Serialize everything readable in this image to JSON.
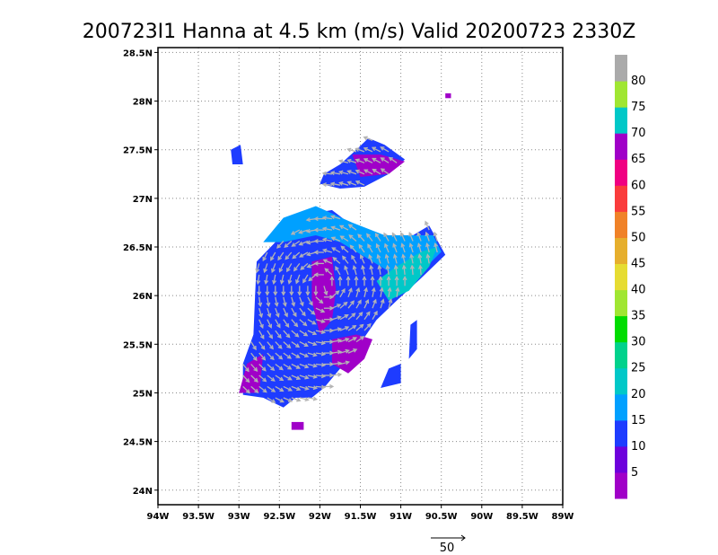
{
  "chart_data": {
    "type": "heatmap",
    "title": "200723I1 Hanna at 4.5 km (m/s) Valid 20200723 2330Z",
    "x_range": [
      -94,
      -89
    ],
    "y_range": [
      23.85,
      28.55
    ],
    "x_ticks": [
      -94,
      -93.5,
      -93,
      -92.5,
      -92,
      -91.5,
      -91,
      -90.5,
      -90,
      -89.5,
      -89
    ],
    "x_tick_labels": [
      "94W",
      "93.5W",
      "93W",
      "92.5W",
      "92W",
      "91.5W",
      "91W",
      "90.5W",
      "90W",
      "89.5W",
      "89W"
    ],
    "y_ticks": [
      24,
      24.5,
      25,
      25.5,
      26,
      26.5,
      27,
      27.5,
      28,
      28.5
    ],
    "y_tick_labels": [
      "24N",
      "24.5N",
      "25N",
      "25.5N",
      "26N",
      "26.5N",
      "27N",
      "27.5N",
      "28N",
      "28.5N"
    ],
    "grid": true,
    "colorbar": {
      "labels": [
        "5",
        "10",
        "15",
        "20",
        "25",
        "30",
        "35",
        "40",
        "45",
        "50",
        "55",
        "60",
        "65",
        "70",
        "75",
        "80"
      ],
      "colors": [
        "#a000c8",
        "#6e00dc",
        "#1e3cff",
        "#00a0ff",
        "#00c8c8",
        "#00d28c",
        "#00dc00",
        "#a0e632",
        "#e6dc32",
        "#e6af2d",
        "#f08228",
        "#fa3c3c",
        "#f00082",
        "#a000c8",
        "#00c8c8",
        "#a0e632",
        "#aaaaaa"
      ]
    },
    "wind_reference": {
      "label": "50",
      "speed": 50
    },
    "wind_regions": [
      {
        "name": "main",
        "polygon": [
          [
            -92.78,
            26.35
          ],
          [
            -92.55,
            26.55
          ],
          [
            -92.3,
            26.7
          ],
          [
            -92.05,
            26.85
          ],
          [
            -91.85,
            26.88
          ],
          [
            -91.6,
            26.72
          ],
          [
            -91.3,
            26.62
          ],
          [
            -91.0,
            26.55
          ],
          [
            -90.85,
            26.62
          ],
          [
            -90.65,
            26.72
          ],
          [
            -90.45,
            26.42
          ],
          [
            -90.75,
            26.18
          ],
          [
            -91.05,
            25.95
          ],
          [
            -91.3,
            25.75
          ],
          [
            -91.55,
            25.45
          ],
          [
            -91.75,
            25.25
          ],
          [
            -91.95,
            25.05
          ],
          [
            -92.1,
            24.95
          ],
          [
            -92.3,
            24.95
          ],
          [
            -92.45,
            24.85
          ],
          [
            -92.7,
            24.95
          ],
          [
            -92.95,
            24.98
          ],
          [
            -92.95,
            25.3
          ],
          [
            -92.82,
            25.6
          ],
          [
            -92.8,
            26.0
          ]
        ],
        "color": "#1e3cff"
      },
      {
        "name": "north",
        "polygon": [
          [
            -91.95,
            27.25
          ],
          [
            -91.75,
            27.35
          ],
          [
            -91.55,
            27.5
          ],
          [
            -91.4,
            27.62
          ],
          [
            -91.2,
            27.55
          ],
          [
            -90.95,
            27.4
          ],
          [
            -91.15,
            27.25
          ],
          [
            -91.45,
            27.12
          ],
          [
            -91.75,
            27.1
          ],
          [
            -92.0,
            27.15
          ]
        ],
        "color": "#1e3cff"
      },
      {
        "name": "cyan-band",
        "polygon": [
          [
            -92.7,
            26.55
          ],
          [
            -92.45,
            26.8
          ],
          [
            -92.05,
            26.92
          ],
          [
            -91.6,
            26.75
          ],
          [
            -91.2,
            26.62
          ],
          [
            -90.85,
            26.62
          ],
          [
            -90.6,
            26.62
          ],
          [
            -90.5,
            26.45
          ],
          [
            -90.8,
            26.2
          ],
          [
            -91.0,
            26.05
          ],
          [
            -91.15,
            26.25
          ],
          [
            -91.45,
            26.4
          ],
          [
            -91.75,
            26.55
          ],
          [
            -92.05,
            26.62
          ],
          [
            -92.45,
            26.55
          ]
        ],
        "color": "#00a0ff"
      },
      {
        "name": "cyan-east",
        "polygon": [
          [
            -91.3,
            26.15
          ],
          [
            -91.05,
            26.3
          ],
          [
            -90.75,
            26.45
          ],
          [
            -90.55,
            26.5
          ],
          [
            -90.65,
            26.3
          ],
          [
            -90.9,
            26.05
          ],
          [
            -91.15,
            25.95
          ]
        ],
        "color": "#00c8c8"
      },
      {
        "name": "purple-center",
        "polygon": [
          [
            -92.1,
            26.35
          ],
          [
            -91.85,
            26.4
          ],
          [
            -91.8,
            26.05
          ],
          [
            -91.85,
            25.75
          ],
          [
            -92.0,
            25.6
          ],
          [
            -92.1,
            25.95
          ]
        ],
        "color": "#a000c8"
      },
      {
        "name": "purple-south",
        "polygon": [
          [
            -91.85,
            25.55
          ],
          [
            -91.55,
            25.6
          ],
          [
            -91.35,
            25.55
          ],
          [
            -91.45,
            25.35
          ],
          [
            -91.65,
            25.2
          ],
          [
            -91.85,
            25.3
          ]
        ],
        "color": "#a000c8"
      },
      {
        "name": "purple-southwest",
        "polygon": [
          [
            -93.0,
            25.0
          ],
          [
            -92.75,
            25.0
          ],
          [
            -92.7,
            25.4
          ],
          [
            -92.9,
            25.3
          ]
        ],
        "color": "#a000c8"
      },
      {
        "name": "purple-north",
        "polygon": [
          [
            -91.6,
            27.45
          ],
          [
            -91.25,
            27.45
          ],
          [
            -90.95,
            27.38
          ],
          [
            -91.15,
            27.25
          ],
          [
            -91.5,
            27.22
          ]
        ],
        "color": "#a000c8"
      },
      {
        "name": "band-east",
        "polygon": [
          [
            -90.88,
            25.7
          ],
          [
            -90.8,
            25.75
          ],
          [
            -90.8,
            25.45
          ],
          [
            -90.9,
            25.35
          ]
        ],
        "color": "#1e3cff"
      },
      {
        "name": "band-east-small",
        "polygon": [
          [
            -91.15,
            25.25
          ],
          [
            -91.0,
            25.3
          ],
          [
            -91.0,
            25.1
          ],
          [
            -91.25,
            25.05
          ]
        ],
        "color": "#1e3cff"
      },
      {
        "name": "fleck-west",
        "polygon": [
          [
            -93.1,
            27.5
          ],
          [
            -92.98,
            27.55
          ],
          [
            -92.95,
            27.35
          ],
          [
            -93.08,
            27.35
          ]
        ],
        "color": "#1e3cff"
      },
      {
        "name": "fleck-south",
        "polygon": [
          [
            -92.35,
            24.7
          ],
          [
            -92.2,
            24.7
          ],
          [
            -92.2,
            24.62
          ],
          [
            -92.35,
            24.62
          ]
        ],
        "color": "#a000c8"
      },
      {
        "name": "fleck-northeast",
        "polygon": [
          [
            -90.45,
            28.08
          ],
          [
            -90.38,
            28.08
          ],
          [
            -90.38,
            28.03
          ],
          [
            -90.45,
            28.03
          ]
        ],
        "color": "#a000c8"
      }
    ]
  }
}
